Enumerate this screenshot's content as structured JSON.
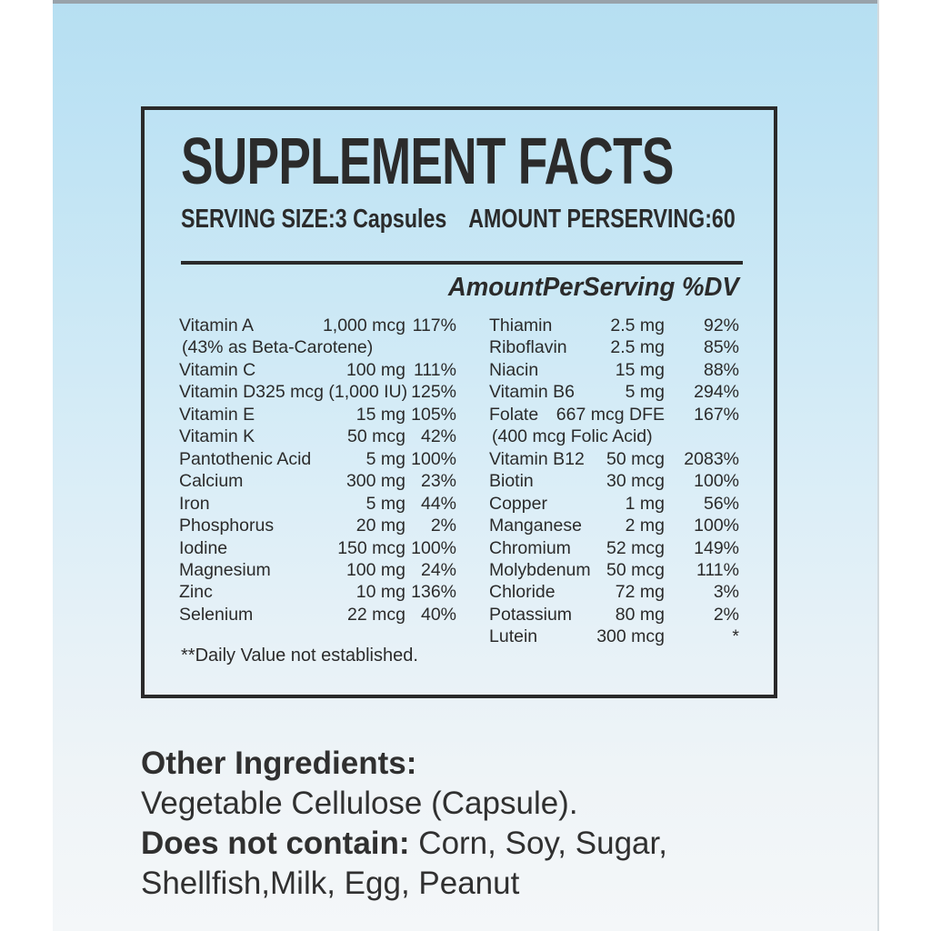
{
  "label": {
    "title": "SUPPLEMENT FACTS",
    "serving_size": "SERVING SIZE:3 Capsules",
    "amount_per_serving": "AMOUNT PERSERVING:60",
    "table_header": "AmountPerServing %DV",
    "footnote": "**Daily Value not established."
  },
  "columns": {
    "left": [
      {
        "name": "Vitamin A",
        "amount": "1,000 mcg",
        "dv": "117%"
      },
      {
        "name": "(43% as Beta-Carotene)",
        "amount": "",
        "dv": ""
      },
      {
        "name": "Vitamin C",
        "amount": "100 mg",
        "dv": "111%"
      },
      {
        "name": "Vitamin D3",
        "amount": "25 mcg (1,000 IU)",
        "dv": "125%"
      },
      {
        "name": "Vitamin E",
        "amount": "15 mg",
        "dv": "105%"
      },
      {
        "name": "Vitamin K",
        "amount": "50 mcg",
        "dv": "42%"
      },
      {
        "name": "Pantothenic Acid",
        "amount": "5 mg",
        "dv": "100%"
      },
      {
        "name": "Calcium",
        "amount": "300 mg",
        "dv": "23%"
      },
      {
        "name": "Iron",
        "amount": "5 mg",
        "dv": "44%"
      },
      {
        "name": "Phosphorus",
        "amount": "20 mg",
        "dv": "2%"
      },
      {
        "name": "Iodine",
        "amount": "150 mcg",
        "dv": "100%"
      },
      {
        "name": "Magnesium",
        "amount": "100 mg",
        "dv": "24%"
      },
      {
        "name": "Zinc",
        "amount": "10 mg",
        "dv": "136%"
      },
      {
        "name": "Selenium",
        "amount": "22 mcg",
        "dv": "40%"
      }
    ],
    "right": [
      {
        "name": "Thiamin",
        "amount": "2.5 mg",
        "dv": "92%"
      },
      {
        "name": "Riboflavin",
        "amount": "2.5 mg",
        "dv": "85%"
      },
      {
        "name": "Niacin",
        "amount": "15 mg",
        "dv": "88%"
      },
      {
        "name": "Vitamin B6",
        "amount": "5 mg",
        "dv": "294%"
      },
      {
        "name": "Folate",
        "amount": "667 mcg DFE",
        "dv": "167%"
      },
      {
        "name": "(400 mcg Folic Acid)",
        "amount": "",
        "dv": ""
      },
      {
        "name": "Vitamin B12",
        "amount": "50 mcg",
        "dv": "2083%"
      },
      {
        "name": "Biotin",
        "amount": "30 mcg",
        "dv": "100%"
      },
      {
        "name": "Copper",
        "amount": "1 mg",
        "dv": "56%"
      },
      {
        "name": "Manganese",
        "amount": "2 mg",
        "dv": "100%"
      },
      {
        "name": "Chromium",
        "amount": "52 mcg",
        "dv": "149%"
      },
      {
        "name": "Molybdenum",
        "amount": "50 mcg",
        "dv": "111%"
      },
      {
        "name": "Chloride",
        "amount": "72 mg",
        "dv": "3%"
      },
      {
        "name": "Potassium",
        "amount": "80 mg",
        "dv": "2%"
      },
      {
        "name": "Lutein",
        "amount": "300 mcg",
        "dv": "*"
      }
    ]
  },
  "other": {
    "heading": "Other Ingredients:",
    "ingredients": "Vegetable Cellulose (Capsule).",
    "does_not_contain_label": "Does not contain:",
    "does_not_contain_items": " Corn, Soy, Sugar,",
    "does_not_contain_items2": "Shellfish,Milk, Egg, Peanut"
  },
  "colors": {
    "ink": "#2b2b2b",
    "panel_top": "#b6dff2",
    "panel_bottom": "#f4f7f9",
    "top_edge_line": "#98a2aa"
  }
}
